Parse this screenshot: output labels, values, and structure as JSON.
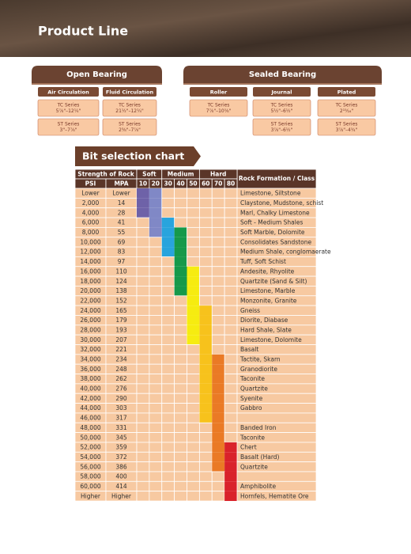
{
  "header": {
    "title": "Product Line"
  },
  "product_line": [
    {
      "title": "Open Bearing",
      "groups": [
        {
          "title": "Air Circulation",
          "items": [
            {
              "series": "TC Series",
              "size": "5⅞\"–12¼\""
            },
            {
              "series": "ST Series",
              "size": "3\"–7⅞\""
            }
          ]
        },
        {
          "title": "Fluid Circulation",
          "items": [
            {
              "series": "TC Series",
              "size": "21½\"–12¼\""
            },
            {
              "series": "ST Series",
              "size": "2⅜\"–7⅞\""
            }
          ]
        }
      ]
    },
    {
      "title": "Sealed Bearing",
      "groups": [
        {
          "title": "Roller",
          "items": [
            {
              "series": "TC Series",
              "size": "7⅞\"–10⅝\""
            }
          ]
        },
        {
          "title": "Journal",
          "items": [
            {
              "series": "TC Series",
              "size": "5½\"–6½\""
            },
            {
              "series": "ST Series",
              "size": "3⅞\"–6½\""
            }
          ]
        },
        {
          "title": "Plated",
          "items": [
            {
              "series": "TC Series",
              "size": "2¹⁵⁄₁₆\""
            },
            {
              "series": "ST Series",
              "size": "3⅞\"–4¾\""
            }
          ]
        }
      ]
    }
  ],
  "chart": {
    "title": "Bit selection chart"
  },
  "table": {
    "strength": "Strength of Rock",
    "psi": "PSI",
    "mpa": "MPA",
    "rock": "Rock Formation / Class",
    "bands": [
      {
        "label": "Soft",
        "columns": [
          {
            "label": 10,
            "color": "#6e62a8"
          },
          {
            "label": 20,
            "color": "#8088c6"
          }
        ]
      },
      {
        "label": "Medium",
        "columns": [
          {
            "label": 30,
            "color": "#28a4dd"
          },
          {
            "label": 40,
            "color": "#16994a"
          },
          {
            "label": 50,
            "color": "#f6ec10"
          }
        ]
      },
      {
        "label": "Hard",
        "columns": [
          {
            "label": 60,
            "color": "#f7c21c"
          },
          {
            "label": 70,
            "color": "#ea7a25"
          },
          {
            "label": 80,
            "color": "#d9222a"
          }
        ]
      }
    ],
    "rows": [
      {
        "psi": "Lower",
        "mpa": "Lower",
        "range": [
          10,
          20
        ],
        "rock": "Limestone, Siltstone"
      },
      {
        "psi": "2,000",
        "mpa": "14",
        "range": [
          10,
          20
        ],
        "rock": "Claystone, Mudstone, schist"
      },
      {
        "psi": "4,000",
        "mpa": "28",
        "range": [
          10,
          20
        ],
        "rock": "Marl, Chalky Limestone"
      },
      {
        "psi": "6,000",
        "mpa": "41",
        "range": [
          20,
          30
        ],
        "rock": "Soft - Medium Shales"
      },
      {
        "psi": "8,000",
        "mpa": "55",
        "range": [
          20,
          40
        ],
        "rock": "Soft Marble, Dolomite"
      },
      {
        "psi": "10,000",
        "mpa": "69",
        "range": [
          30,
          40
        ],
        "rock": "Consolidates Sandstone"
      },
      {
        "psi": "12,000",
        "mpa": "83",
        "range": [
          30,
          40
        ],
        "rock": "Medium Shale, conglomaerate"
      },
      {
        "psi": "14,000",
        "mpa": "97",
        "range": [
          40,
          40
        ],
        "rock": "Tuff, Soft Schist"
      },
      {
        "psi": "16,000",
        "mpa": "110",
        "range": [
          40,
          50
        ],
        "rock": "Andesite, Rhyolite"
      },
      {
        "psi": "18,000",
        "mpa": "124",
        "range": [
          40,
          50
        ],
        "rock": "Quartzite (Sand & Silt)"
      },
      {
        "psi": "20,000",
        "mpa": "138",
        "range": [
          40,
          50
        ],
        "rock": "Limestone, Marble"
      },
      {
        "psi": "22,000",
        "mpa": "152",
        "range": [
          50,
          50
        ],
        "rock": "Monzonite, Granite"
      },
      {
        "psi": "24,000",
        "mpa": "165",
        "range": [
          50,
          60
        ],
        "rock": "Gneiss"
      },
      {
        "psi": "26,000",
        "mpa": "179",
        "range": [
          50,
          60
        ],
        "rock": "Diorite, Diabase"
      },
      {
        "psi": "28,000",
        "mpa": "193",
        "range": [
          50,
          60
        ],
        "rock": "Hard Shale, Slate"
      },
      {
        "psi": "30,000",
        "mpa": "207",
        "range": [
          50,
          60
        ],
        "rock": "Limestone, Dolomite"
      },
      {
        "psi": "32,000",
        "mpa": "221",
        "range": [
          60,
          60
        ],
        "rock": "Basalt"
      },
      {
        "psi": "34,000",
        "mpa": "234",
        "range": [
          60,
          70
        ],
        "rock": "Tactite, Skarn"
      },
      {
        "psi": "36,000",
        "mpa": "248",
        "range": [
          60,
          70
        ],
        "rock": "Granodiorite"
      },
      {
        "psi": "38,000",
        "mpa": "262",
        "range": [
          60,
          70
        ],
        "rock": "Taconite"
      },
      {
        "psi": "40,000",
        "mpa": "276",
        "range": [
          60,
          70
        ],
        "rock": "Quartzite"
      },
      {
        "psi": "42,000",
        "mpa": "290",
        "range": [
          60,
          70
        ],
        "rock": "Syenite"
      },
      {
        "psi": "44,000",
        "mpa": "303",
        "range": [
          60,
          70
        ],
        "rock": "Gabbro"
      },
      {
        "psi": "46,000",
        "mpa": "317",
        "range": [
          60,
          70
        ],
        "rock": null
      },
      {
        "psi": "48,000",
        "mpa": "331",
        "range": [
          70,
          70
        ],
        "rock": "Banded Iron"
      },
      {
        "psi": "50,000",
        "mpa": "345",
        "range": [
          70,
          70
        ],
        "rock": "Taconite"
      },
      {
        "psi": "52,000",
        "mpa": "359",
        "range": [
          70,
          80
        ],
        "rock": "Chert"
      },
      {
        "psi": "54,000",
        "mpa": "372",
        "range": [
          70,
          80
        ],
        "rock": "Basalt (Hard)"
      },
      {
        "psi": "56,000",
        "mpa": "386",
        "range": [
          70,
          80
        ],
        "rock": "Quartzite"
      },
      {
        "psi": "58,000",
        "mpa": "400",
        "range": [
          80,
          80
        ],
        "rock": null
      },
      {
        "psi": "60,000",
        "mpa": "414",
        "range": [
          80,
          80
        ],
        "rock": "Amphibolite"
      },
      {
        "psi": "Higher",
        "mpa": "Higher",
        "range": [
          80,
          80
        ],
        "rock": "Hornfels, Hematite Ore"
      }
    ]
  }
}
